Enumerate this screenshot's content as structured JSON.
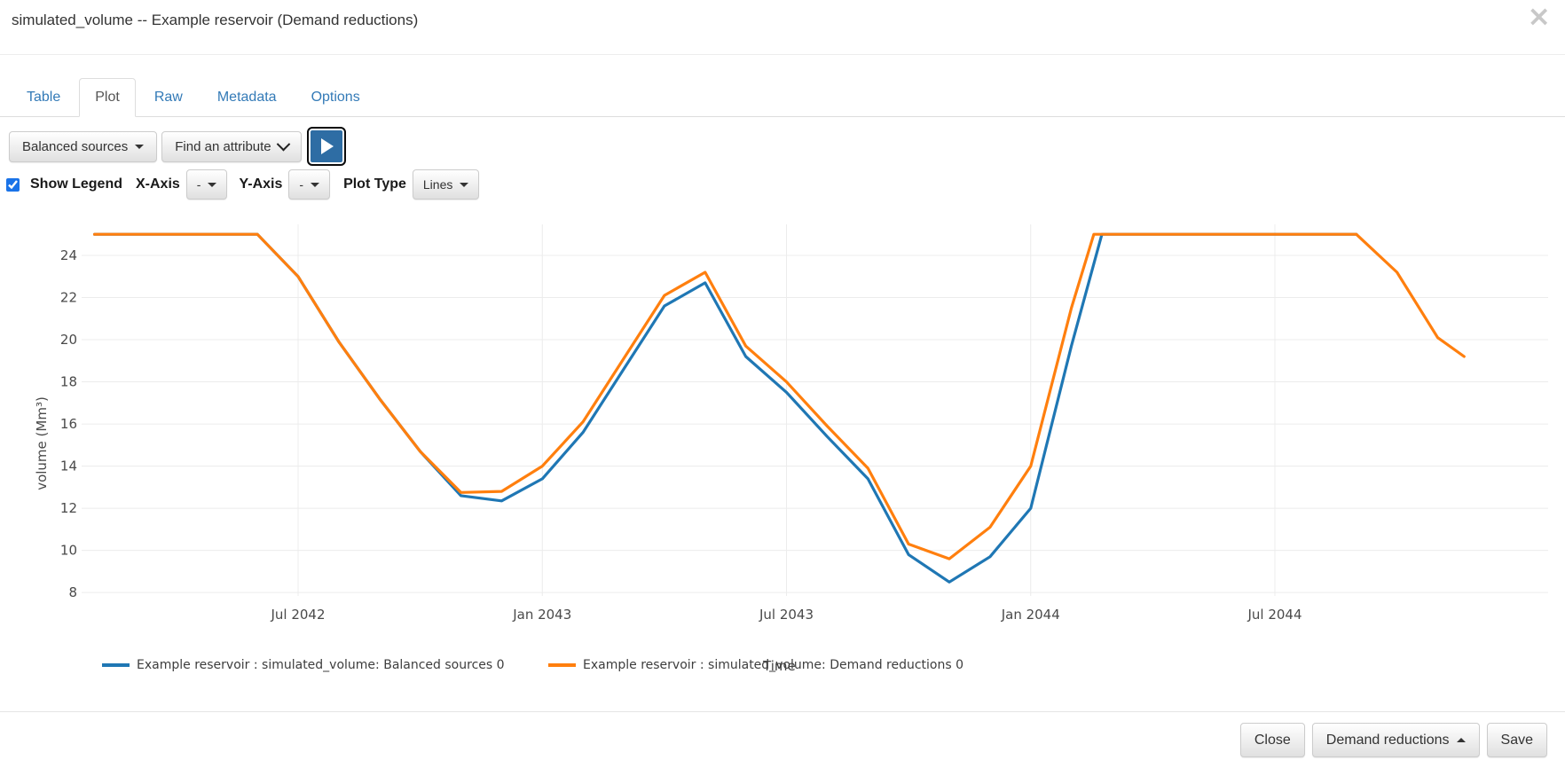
{
  "modal": {
    "title": "simulated_volume -- Example reservoir (Demand reductions)",
    "close_symbol": "×"
  },
  "icons": {
    "close": "close-icon",
    "caret_down": "caret-down-icon",
    "caret_up": "caret-up-icon",
    "chevron_down": "chevron-down-icon",
    "play": "play-icon"
  },
  "tabs": [
    {
      "label": "Table",
      "active": false
    },
    {
      "label": "Plot",
      "active": true
    },
    {
      "label": "Raw",
      "active": false
    },
    {
      "label": "Metadata",
      "active": false
    },
    {
      "label": "Options",
      "active": false
    }
  ],
  "toolbar": {
    "scenario_dropdown_value": "Balanced sources",
    "attribute_dropdown_value": "Find an attribute"
  },
  "plot_controls": {
    "show_legend_label": "Show Legend",
    "show_legend_checked": true,
    "x_axis_label": "X-Axis",
    "x_axis_value": "-",
    "y_axis_label": "Y-Axis",
    "y_axis_value": "-",
    "plot_type_label": "Plot Type",
    "plot_type_value": "Lines"
  },
  "chart_data": {
    "type": "line",
    "xlabel": "Time",
    "ylabel": "volume (Mm³)",
    "x_unit": "t = months since Feb 2042 (monthly samples)",
    "ylim": [
      7.5,
      25.5
    ],
    "y_ticks": [
      8,
      10,
      12,
      14,
      16,
      18,
      20,
      22,
      24
    ],
    "x_ticks": [
      {
        "t": 5,
        "label": "Jul 2042"
      },
      {
        "t": 11,
        "label": "Jan 2043"
      },
      {
        "t": 17,
        "label": "Jul 2043"
      },
      {
        "t": 23,
        "label": "Jan 2044"
      },
      {
        "t": 29,
        "label": "Jul 2044"
      }
    ],
    "grid": true,
    "legend_position": "bottom",
    "series": [
      {
        "name": "Example reservoir : simulated_volume: Balanced sources 0",
        "color": "#1f77b4",
        "points": [
          [
            0,
            25
          ],
          [
            1,
            25
          ],
          [
            2,
            25
          ],
          [
            3,
            25
          ],
          [
            4,
            25
          ],
          [
            5,
            23.0
          ],
          [
            6,
            19.9
          ],
          [
            7,
            17.2
          ],
          [
            8,
            14.7
          ],
          [
            9,
            12.6
          ],
          [
            10,
            12.35
          ],
          [
            11,
            13.4
          ],
          [
            12,
            15.6
          ],
          [
            13,
            18.6
          ],
          [
            14,
            21.6
          ],
          [
            15,
            22.7
          ],
          [
            16,
            19.2
          ],
          [
            17,
            17.5
          ],
          [
            18,
            15.4
          ],
          [
            19,
            13.4
          ],
          [
            20,
            9.8
          ],
          [
            21,
            8.5
          ],
          [
            22,
            9.7
          ],
          [
            23,
            12.0
          ],
          [
            24,
            19.7
          ],
          [
            24.75,
            25
          ],
          [
            25,
            25
          ],
          [
            26,
            25
          ],
          [
            27,
            25
          ],
          [
            28,
            25
          ],
          [
            29,
            25
          ],
          [
            30,
            25
          ],
          [
            31,
            25
          ]
        ]
      },
      {
        "name": "Example reservoir : simulated_volume: Demand reductions 0",
        "color": "#ff7f0e",
        "points": [
          [
            0,
            25
          ],
          [
            1,
            25
          ],
          [
            2,
            25
          ],
          [
            3,
            25
          ],
          [
            4,
            25
          ],
          [
            5,
            23.0
          ],
          [
            6,
            19.9
          ],
          [
            7,
            17.2
          ],
          [
            8,
            14.7
          ],
          [
            9,
            12.75
          ],
          [
            10,
            12.8
          ],
          [
            11,
            14.0
          ],
          [
            12,
            16.1
          ],
          [
            13,
            19.1
          ],
          [
            14,
            22.1
          ],
          [
            15,
            23.2
          ],
          [
            16,
            19.7
          ],
          [
            17,
            18.0
          ],
          [
            18,
            15.9
          ],
          [
            19,
            13.9
          ],
          [
            20,
            10.3
          ],
          [
            21,
            9.6
          ],
          [
            22,
            11.1
          ],
          [
            23,
            14.0
          ],
          [
            24,
            21.5
          ],
          [
            24.55,
            25
          ],
          [
            25,
            25
          ],
          [
            26,
            25
          ],
          [
            27,
            25
          ],
          [
            28,
            25
          ],
          [
            29,
            25
          ],
          [
            30,
            25
          ],
          [
            31,
            25
          ],
          [
            32,
            23.2
          ],
          [
            33,
            20.1
          ],
          [
            33.65,
            19.2
          ]
        ]
      }
    ]
  },
  "footer": {
    "close_label": "Close",
    "scenario_label": "Demand reductions",
    "save_label": "Save"
  }
}
